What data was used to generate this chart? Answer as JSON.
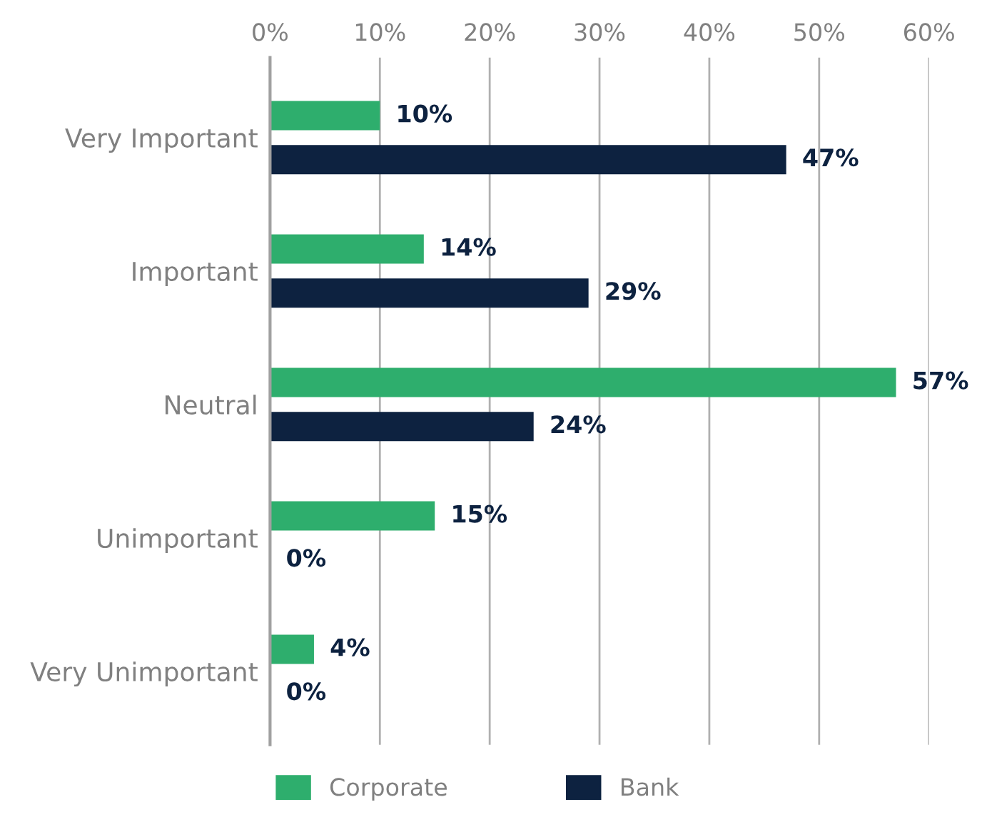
{
  "chart_data": {
    "type": "bar",
    "orientation": "horizontal",
    "categories": [
      "Very Important",
      "Important",
      "Neutral",
      "Unimportant",
      "Very Unimportant"
    ],
    "series": [
      {
        "name": "Corporate",
        "color": "#2eae6d",
        "values": [
          10,
          14,
          57,
          15,
          4
        ],
        "value_labels": [
          "10%",
          "14%",
          "57%",
          "15%",
          "4%"
        ]
      },
      {
        "name": "Bank",
        "color": "#0d2240",
        "values": [
          47,
          29,
          24,
          0,
          0
        ],
        "value_labels": [
          "47%",
          "29%",
          "24%",
          "0%",
          "0%"
        ]
      }
    ],
    "xlim": [
      0,
      60
    ],
    "xticks": [
      {
        "value": 0,
        "label": "0%"
      },
      {
        "value": 10,
        "label": "10%"
      },
      {
        "value": 20,
        "label": "20%"
      },
      {
        "value": 30,
        "label": "30%"
      },
      {
        "value": 40,
        "label": "40%"
      },
      {
        "value": 50,
        "label": "50%"
      },
      {
        "value": 60,
        "label": "60%"
      }
    ],
    "grid": "x",
    "legend": "bottom"
  }
}
